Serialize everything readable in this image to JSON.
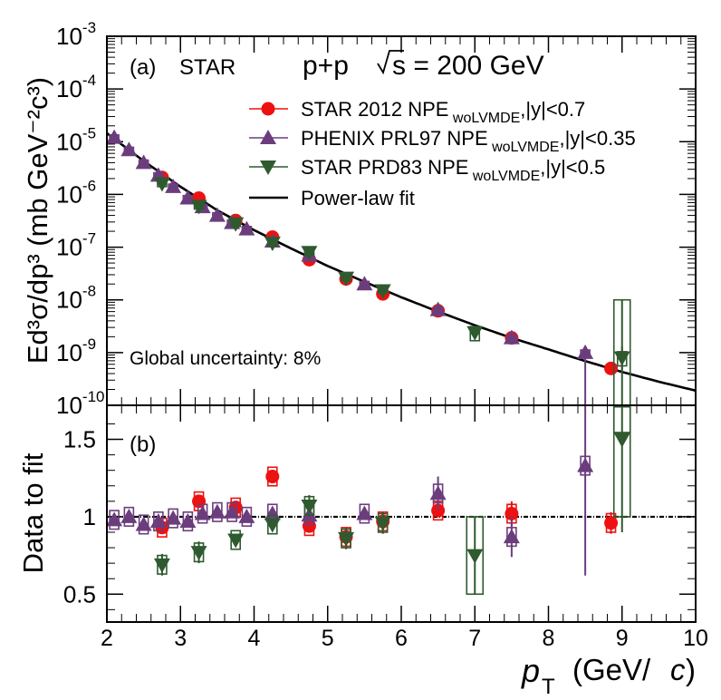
{
  "chart_data": [
    {
      "panel": "(a)",
      "type": "scatter",
      "experiment": "STAR",
      "system_prefix": "p+p",
      "energy_value": "s = 200 GeV",
      "ylabel": "Ed³σ/dp³ (mb GeV⁻²c³)",
      "yscale": "log",
      "ylim": [
        1e-10,
        0.001
      ],
      "ytick_labels": [
        "10-10",
        "10-9",
        "10-8",
        "10-7",
        "10-6",
        "10-5",
        "10-4",
        "10-3"
      ],
      "xlim": [
        2,
        10
      ],
      "annotation": "Global uncertainty: 8%",
      "legend_position": "top-right",
      "series": [
        {
          "name": "STAR 2012 NPE",
          "sub": "woLVMDE",
          "cut": ",|y|<0.7",
          "color": "#ee1111",
          "marker": "circle",
          "x": [
            2.75,
            3.25,
            3.75,
            4.25,
            4.75,
            5.25,
            5.75,
            6.5,
            7.5,
            8.85
          ],
          "y": [
            2.1e-06,
            8.5e-07,
            3.2e-07,
            1.55e-07,
            5.8e-08,
            2.5e-08,
            1.3e-08,
            6.2e-09,
            1.9e-09,
            5e-10
          ]
        },
        {
          "name": "PHENIX PRL97 NPE",
          "sub": "woLVMDE",
          "cut": ",|y|<0.35",
          "color": "#6b3d7d",
          "marker": "triangle-up",
          "x": [
            2.1,
            2.3,
            2.5,
            2.7,
            2.9,
            3.1,
            3.3,
            3.5,
            3.7,
            3.9,
            4.25,
            4.75,
            5.5,
            6.5,
            7.5,
            8.5
          ],
          "y": [
            1.2e-05,
            7e-06,
            4e-06,
            2.3e-06,
            1.4e-06,
            8.5e-07,
            5.8e-07,
            4e-07,
            2.9e-07,
            2.2e-07,
            1.3e-07,
            7e-08,
            2e-08,
            6.5e-09,
            1.9e-09,
            1e-09
          ]
        },
        {
          "name": "STAR PRD83 NPE",
          "sub": "woLVMDE",
          "cut": ",|y|<0.5",
          "color": "#2f5a2f",
          "marker": "triangle-down",
          "x": [
            2.75,
            3.25,
            3.75,
            4.25,
            4.75,
            5.25,
            5.75,
            7.0,
            9.0
          ],
          "y": [
            1.6e-06,
            6e-07,
            2.8e-07,
            1.2e-07,
            8e-08,
            2.6e-08,
            1.5e-08,
            2.4e-09,
            8e-10
          ]
        },
        {
          "name": "Power-law fit",
          "color": "#000000",
          "marker": "line",
          "x": [
            2.0,
            2.5,
            3.0,
            3.5,
            4.0,
            4.5,
            5.0,
            5.5,
            6.0,
            6.5,
            7.0,
            7.5,
            8.0,
            8.5,
            9.0,
            9.5,
            10.0
          ],
          "y": [
            1.45e-05,
            4.3e-06,
            1.4e-06,
            5e-07,
            2.1e-07,
            9.5e-08,
            4.4e-08,
            2.2e-08,
            1.12e-08,
            6e-09,
            3.3e-09,
            1.9e-09,
            1.15e-09,
            6.9e-10,
            4.3e-10,
            2.8e-10,
            1.9e-10
          ]
        }
      ]
    },
    {
      "panel": "(b)",
      "type": "scatter",
      "ylabel": "Data to fit",
      "xlabel_var": "p",
      "xlabel_sub": "T",
      "xlabel_unit": "(GeV/",
      "xlabel_c": "c",
      "xlabel_close": ")",
      "xlim": [
        2,
        10
      ],
      "xticks": [
        "2",
        "3",
        "4",
        "5",
        "6",
        "7",
        "8",
        "9",
        "10"
      ],
      "ylim": [
        0.32,
        1.72
      ],
      "ytick_labels": [
        "0.5",
        "1",
        "1.5"
      ],
      "reference_line": 1.0,
      "series": [
        {
          "name": "STAR 2012 NPE",
          "x": [
            2.75,
            3.25,
            3.75,
            4.25,
            4.75,
            5.25,
            5.75,
            6.5,
            7.5,
            8.85
          ],
          "ratio": [
            0.93,
            1.1,
            1.06,
            1.26,
            0.94,
            0.87,
            0.97,
            1.04,
            1.02,
            0.96
          ],
          "err": [
            0.04,
            0.05,
            0.05,
            0.06,
            0.04,
            0.04,
            0.05,
            0.05,
            0.08,
            0.07
          ]
        },
        {
          "name": "PHENIX PRL97 NPE",
          "x": [
            2.1,
            2.3,
            2.5,
            2.7,
            2.9,
            3.1,
            3.3,
            3.5,
            3.7,
            3.9,
            4.25,
            4.75,
            5.5,
            6.5,
            7.5,
            8.5
          ],
          "ratio": [
            0.98,
            1.0,
            0.95,
            0.97,
            0.99,
            0.97,
            1.02,
            1.03,
            1.03,
            1.0,
            1.02,
            1.01,
            1.02,
            1.15,
            0.87,
            1.33
          ],
          "err": [
            0.04,
            0.04,
            0.04,
            0.04,
            0.04,
            0.04,
            0.04,
            0.04,
            0.04,
            0.04,
            0.04,
            0.04,
            0.05,
            0.11,
            0.13,
            0.71
          ]
        },
        {
          "name": "STAR PRD83 NPE",
          "x": [
            2.75,
            3.25,
            3.75,
            4.25,
            4.75,
            5.25,
            5.75,
            7.0,
            9.0
          ],
          "ratio": [
            0.69,
            0.77,
            0.85,
            0.95,
            1.07,
            0.86,
            0.96,
            0.75,
            1.5
          ],
          "err": [
            0.07,
            0.07,
            0.06,
            0.06,
            0.07,
            0.07,
            0.07,
            0.25,
            0.6
          ]
        }
      ]
    }
  ]
}
